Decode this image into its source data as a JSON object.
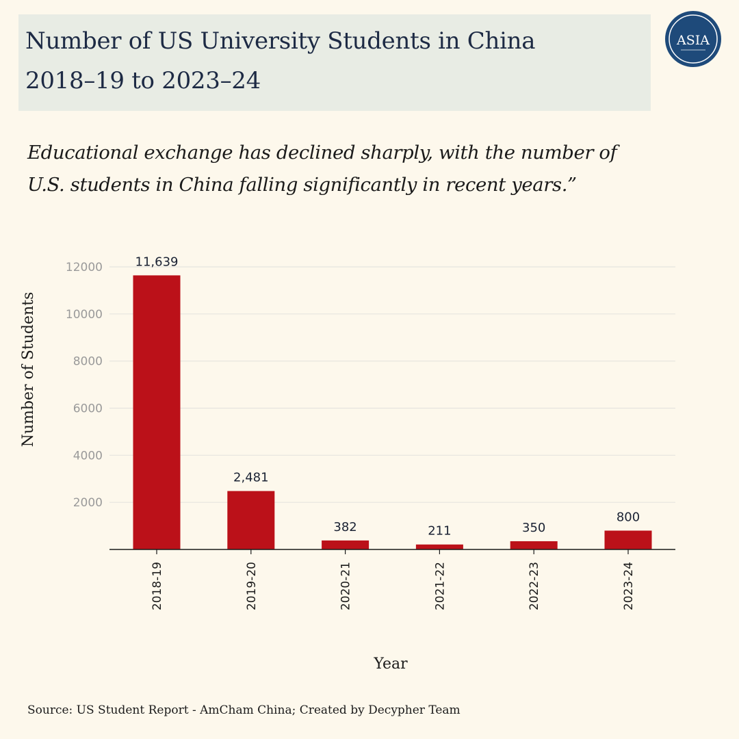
{
  "header": {
    "title_line1": "Number of US University Students in China",
    "title_line2": "2018–19 to 2023–24"
  },
  "logo": {
    "text": "ASIA",
    "ring_color": "#1e4a7a"
  },
  "subtitle": "Educational exchange has declined sharply, with the number of U.S. students in China falling significantly in recent years.”",
  "source": "Source: US Student Report  - AmCham China; Created by Decypher Team",
  "chart_data": {
    "type": "bar",
    "categories": [
      "2018-19",
      "2019-20",
      "2020-21",
      "2021-22",
      "2022-23",
      "2023-24"
    ],
    "values": [
      11639,
      2481,
      382,
      211,
      350,
      800
    ],
    "value_labels": [
      "11,639",
      "2,481",
      "382",
      "211",
      "350",
      "800"
    ],
    "yticks": [
      2000,
      4000,
      6000,
      8000,
      10000,
      12000
    ],
    "ylim": [
      0,
      12000
    ],
    "xlabel": "Year",
    "ylabel": "Number of Students",
    "bar_color": "#bb1119",
    "grid": true
  }
}
